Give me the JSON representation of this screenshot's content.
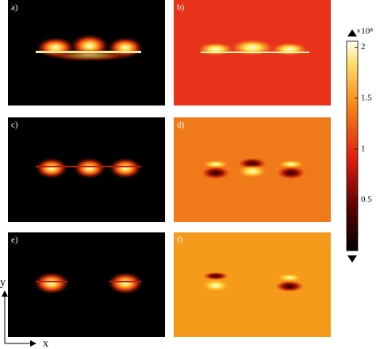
{
  "panels": [
    {
      "label": "a)"
    },
    {
      "label": "b)"
    },
    {
      "label": "c)"
    },
    {
      "label": "d)"
    },
    {
      "label": "e)"
    },
    {
      "label": "f)"
    }
  ],
  "colorbar": {
    "exponent_label": "×10⁸",
    "lim": [
      0,
      2.06
    ],
    "ticks": [
      0.5,
      1,
      1.5,
      2
    ]
  },
  "axes": {
    "y": "y",
    "x": "x"
  }
}
